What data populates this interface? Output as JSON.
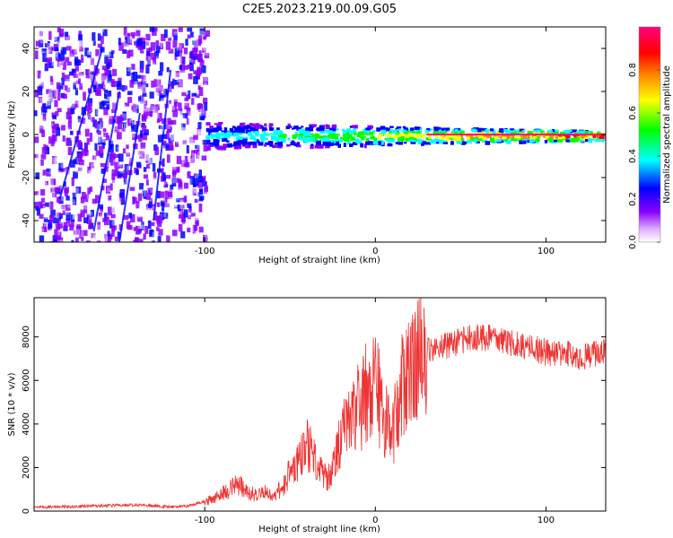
{
  "figure": {
    "title": "C2E5.2023.219.00.09.G05"
  },
  "chart_data": [
    {
      "type": "heatmap",
      "xlabel": "Height of straight line (km)",
      "ylabel": "Frequency (Hz)",
      "xlim": [
        -200,
        135
      ],
      "ylim": [
        -50,
        50
      ],
      "xticks": [
        -100,
        0,
        100
      ],
      "yticks": [
        -40,
        -20,
        0,
        20,
        40
      ],
      "xticklabels": [
        "-100",
        "0",
        "100"
      ],
      "yticklabels": [
        "-40",
        "-20",
        "0",
        "20",
        "40"
      ],
      "colorbar": {
        "label": "Normalized spectral amplitude",
        "range": [
          0,
          1
        ],
        "ticks": [
          0,
          0.2,
          0.4,
          0.6,
          0.8
        ],
        "ticklabels": [
          "0.0",
          "0.2",
          "0.4",
          "0.6",
          "0.8"
        ],
        "colormap": [
          "#ffffff",
          "#8b00ff",
          "#0000ff",
          "#00ffff",
          "#00ff00",
          "#ffff00",
          "#ff8000",
          "#ff0000",
          "#ff0080"
        ]
      },
      "regions": [
        {
          "x_range": [
            -200,
            -100
          ],
          "description_values": {
            "amplitude_range": [
              0.0,
              0.3
            ],
            "frequency_spread": [
              -50,
              50
            ]
          }
        },
        {
          "x_range": [
            -100,
            135
          ],
          "description_values": {
            "centre_frequency": 0,
            "amplitude_range": [
              0.2,
              1.0
            ]
          }
        }
      ],
      "grid": false
    },
    {
      "type": "line",
      "xlabel": "Height of straight line (km)",
      "ylabel": "SNR (10 * v/v)",
      "xlim": [
        -200,
        135
      ],
      "ylim": [
        0,
        9800
      ],
      "xticks": [
        -100,
        0,
        100
      ],
      "yticks": [
        0,
        2000,
        4000,
        6000,
        8000
      ],
      "xticklabels": [
        "-100",
        "0",
        "100"
      ],
      "yticklabels": [
        "0",
        "2000",
        "4000",
        "6000",
        "8000"
      ],
      "color": "#ee3333",
      "x": [
        -200,
        -180,
        -160,
        -140,
        -120,
        -110,
        -100,
        -95,
        -90,
        -85,
        -80,
        -75,
        -70,
        -65,
        -60,
        -55,
        -50,
        -45,
        -40,
        -35,
        -30,
        -25,
        -20,
        -15,
        -10,
        -5,
        0,
        5,
        10,
        15,
        20,
        25,
        30,
        40,
        50,
        60,
        70,
        80,
        90,
        100,
        110,
        120,
        130,
        135
      ],
      "y": [
        180,
        200,
        250,
        280,
        200,
        220,
        450,
        550,
        800,
        1000,
        1300,
        900,
        700,
        850,
        600,
        1100,
        1800,
        2200,
        3000,
        2500,
        1500,
        1800,
        3500,
        3900,
        4700,
        5400,
        6000,
        4200,
        3500,
        5500,
        6600,
        7100,
        7400,
        7600,
        7800,
        8000,
        7900,
        7700,
        7500,
        7300,
        7200,
        7100,
        7200,
        7300
      ],
      "grid": false
    }
  ]
}
